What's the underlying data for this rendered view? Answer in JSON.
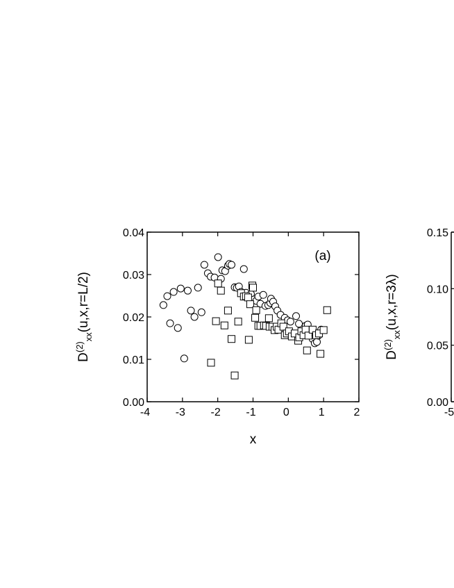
{
  "chart_data": [
    {
      "type": "scatter",
      "annotation": "(a)",
      "xlabel": "x",
      "ylabel": {
        "base": "D",
        "sup": "(2)",
        "sub": "xx",
        "rest": "(u,x,r=L/2)"
      },
      "xlim": [
        -4,
        2
      ],
      "ylim": [
        0,
        0.04
      ],
      "xticks": [
        -4,
        -3,
        -2,
        -1,
        0,
        1,
        2
      ],
      "yticks": [
        {
          "value": 0,
          "label": "0.00"
        },
        0.01,
        0.02,
        0.03,
        0.04
      ],
      "series": [
        {
          "marker": "circle",
          "color": "#000000",
          "x": [
            -3.54,
            -3.43,
            -3.35,
            -3.25,
            -3.13,
            -3.05,
            -2.95,
            -2.85,
            -2.76,
            -2.66,
            -2.56,
            -2.46,
            -2.38,
            -2.28,
            -2.2,
            -2.09,
            -1.99,
            -1.91,
            -1.87,
            -1.79,
            -1.71,
            -1.67,
            -1.61,
            -1.52,
            -1.46,
            -1.4,
            -1.34,
            -1.26,
            -1.2,
            -1.12,
            -1.06,
            -0.98,
            -0.91,
            -0.85,
            -0.79,
            -0.71,
            -0.65,
            -0.57,
            -0.51,
            -0.49,
            -0.43,
            -0.37,
            -0.31,
            -0.22,
            -0.1,
            -0.02,
            0.06,
            0.22,
            0.3,
            0.49,
            0.55,
            0.63,
            0.69,
            0.75,
            0.81,
            0.85,
            0.93
          ],
          "values": [
            0.0228,
            0.0249,
            0.0185,
            0.0259,
            0.0174,
            0.0267,
            0.0102,
            0.0262,
            0.0215,
            0.02,
            0.0269,
            0.0211,
            0.0323,
            0.0303,
            0.0295,
            0.0293,
            0.0341,
            0.029,
            0.031,
            0.0308,
            0.0321,
            0.0325,
            0.0323,
            0.027,
            0.0269,
            0.0272,
            0.0259,
            0.0313,
            0.0257,
            0.0249,
            0.0254,
            0.0241,
            0.0238,
            0.0248,
            0.0231,
            0.0252,
            0.0226,
            0.0228,
            0.0233,
            0.0243,
            0.0236,
            0.0225,
            0.0215,
            0.0205,
            0.0198,
            0.0192,
            0.0189,
            0.0202,
            0.0184,
            0.0179,
            0.0182,
            0.0164,
            0.0148,
            0.0138,
            0.0141,
            0.0156,
            0.017
          ]
        },
        {
          "marker": "square",
          "color": "#000000",
          "x": [
            -2.19,
            -2.05,
            -1.99,
            -1.91,
            -1.81,
            -1.71,
            -1.61,
            -1.52,
            -1.42,
            -1.34,
            -1.26,
            -1.2,
            -1.14,
            -1.12,
            -1.08,
            -1.02,
            -1.0,
            -0.94,
            -0.91,
            -0.85,
            -0.79,
            -0.69,
            -0.63,
            -0.55,
            -0.53,
            -0.45,
            -0.39,
            -0.33,
            -0.28,
            -0.2,
            -0.14,
            -0.1,
            -0.04,
            0.02,
            0.1,
            0.18,
            0.28,
            0.31,
            0.37,
            0.43,
            0.49,
            0.53,
            0.57,
            0.69,
            0.79,
            0.87,
            0.91,
            1.0,
            1.1
          ],
          "values": [
            0.0092,
            0.019,
            0.0279,
            0.0262,
            0.018,
            0.0215,
            0.0148,
            0.0062,
            0.0189,
            0.0256,
            0.0248,
            0.0249,
            0.0246,
            0.0146,
            0.023,
            0.0274,
            0.0269,
            0.0198,
            0.0216,
            0.0179,
            0.0179,
            0.018,
            0.0179,
            0.0197,
            0.0177,
            0.0177,
            0.0169,
            0.0177,
            0.017,
            0.0185,
            0.0177,
            0.0157,
            0.0161,
            0.0166,
            0.0154,
            0.0161,
            0.0144,
            0.0152,
            0.0166,
            0.0157,
            0.017,
            0.0121,
            0.0156,
            0.017,
            0.0157,
            0.0161,
            0.0113,
            0.0169,
            0.0216
          ]
        }
      ]
    },
    {
      "type": "scatter",
      "ylabel": {
        "base": "D",
        "sup": "(2)",
        "sub": "xx",
        "rest": "(u,x,r=3λ)"
      },
      "ylim": [
        0,
        0.15
      ],
      "xticks": [
        -5
      ],
      "yticks": [
        {
          "value": 0,
          "label": "0.00"
        },
        0.05,
        {
          "value": 0.1,
          "label": "0.10"
        },
        0.15
      ]
    }
  ]
}
